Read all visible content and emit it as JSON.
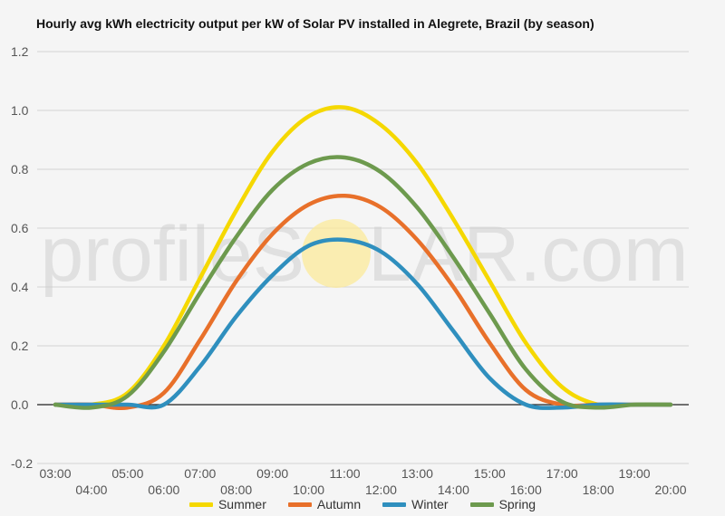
{
  "title": "Hourly avg kWh electricity output per kW of Solar PV installed in Alegrete, Brazil (by season)",
  "watermark": {
    "text_left": "profileS",
    "text_right": "LAR.com",
    "sun_color": "#fbe99a"
  },
  "chart_data": {
    "type": "line",
    "title": "Hourly avg kWh electricity output per kW of Solar PV installed in Alegrete, Brazil (by season)",
    "xlabel": "",
    "ylabel": "",
    "ylim": [
      -0.2,
      1.2
    ],
    "yticks": [
      -0.2,
      0.0,
      0.2,
      0.4,
      0.6,
      0.8,
      1.0,
      1.2
    ],
    "ytick_labels": [
      "-0.2",
      "0.0",
      "0.2",
      "0.4",
      "0.6",
      "0.8",
      "1.0",
      "1.2"
    ],
    "x": [
      "03:00",
      "04:00",
      "05:00",
      "06:00",
      "07:00",
      "08:00",
      "09:00",
      "10:00",
      "11:00",
      "12:00",
      "13:00",
      "14:00",
      "15:00",
      "16:00",
      "17:00",
      "18:00",
      "19:00",
      "20:00"
    ],
    "grid": true,
    "legend_position": "bottom",
    "series": [
      {
        "name": "Summer",
        "color": "#f5d800",
        "values": [
          0,
          0,
          0.04,
          0.2,
          0.43,
          0.66,
          0.86,
          0.98,
          1.01,
          0.95,
          0.82,
          0.63,
          0.42,
          0.21,
          0.06,
          0,
          0,
          0
        ]
      },
      {
        "name": "Autumn",
        "color": "#e8702a",
        "values": [
          0,
          0,
          -0.01,
          0.04,
          0.22,
          0.42,
          0.58,
          0.68,
          0.71,
          0.67,
          0.56,
          0.4,
          0.21,
          0.05,
          0.0,
          0,
          0,
          0
        ]
      },
      {
        "name": "Winter",
        "color": "#2f8fbe",
        "values": [
          0,
          0,
          0,
          0.0,
          0.13,
          0.3,
          0.44,
          0.54,
          0.56,
          0.52,
          0.41,
          0.25,
          0.09,
          0.0,
          -0.01,
          0,
          0,
          0
        ]
      },
      {
        "name": "Spring",
        "color": "#6d9a4e",
        "values": [
          0,
          -0.01,
          0.03,
          0.18,
          0.38,
          0.57,
          0.73,
          0.82,
          0.84,
          0.79,
          0.67,
          0.5,
          0.31,
          0.12,
          0.01,
          -0.01,
          0,
          0
        ]
      }
    ]
  }
}
